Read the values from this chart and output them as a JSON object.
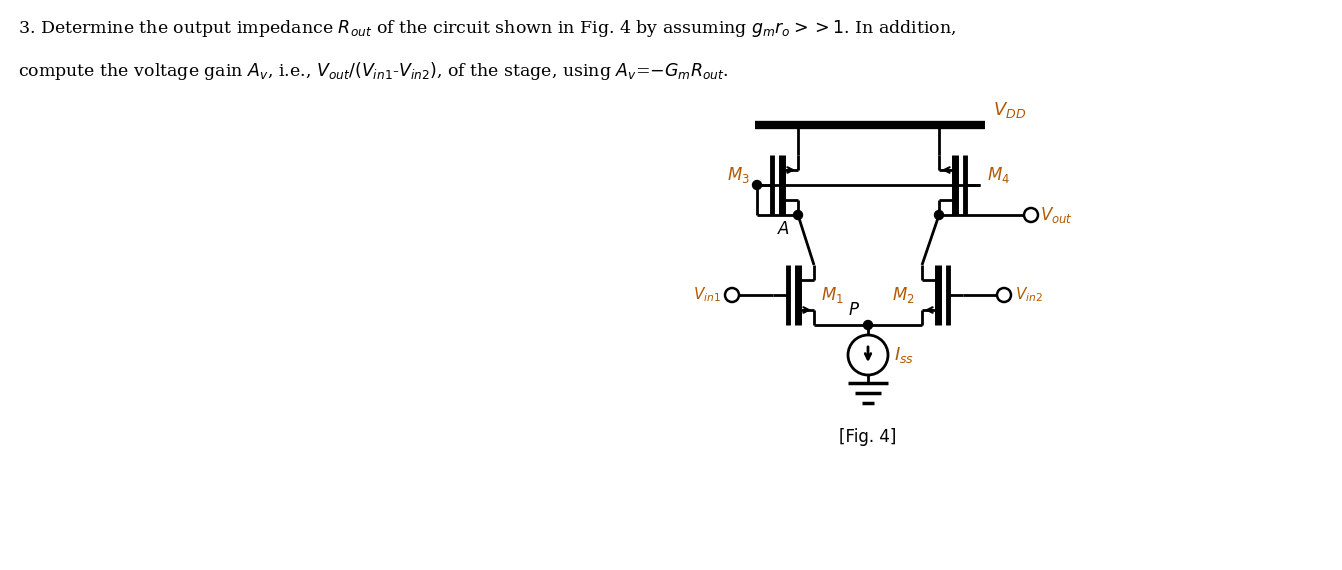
{
  "bg_color": "#ffffff",
  "text_color": "#000000",
  "label_color": "#b35a00",
  "circuit_color": "#000000",
  "fig_width": 13.42,
  "fig_height": 5.7,
  "fig_caption": "[Fig. 4]"
}
